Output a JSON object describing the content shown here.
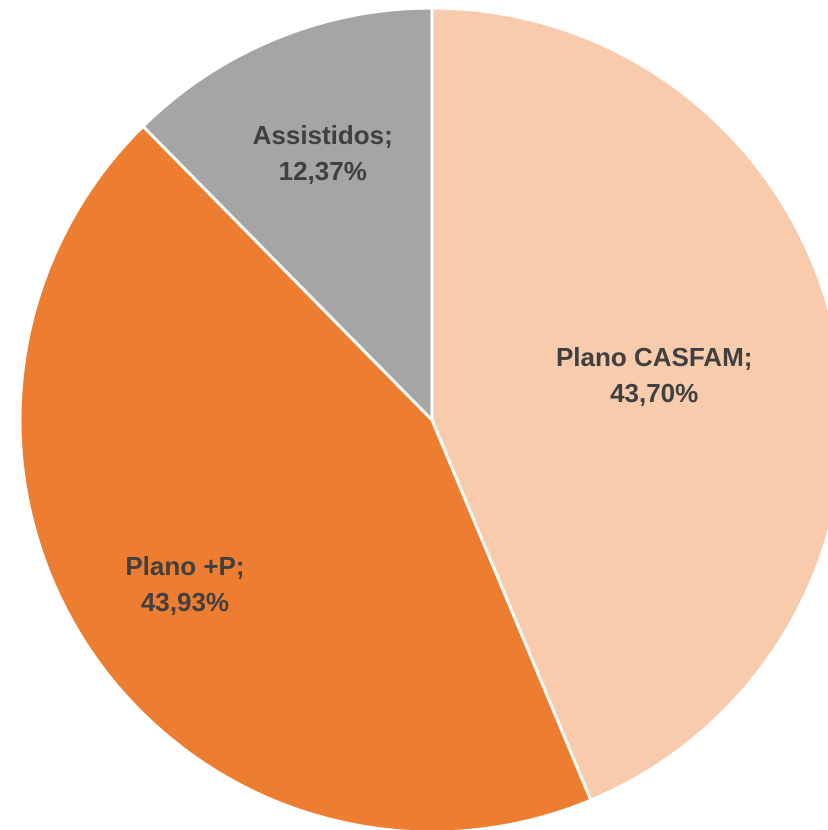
{
  "chart_data": {
    "type": "pie",
    "categories": [
      "Plano CASFAM;",
      "Plano +P;",
      "Assistidos;"
    ],
    "values": [
      43.7,
      43.93,
      12.37
    ],
    "value_labels": [
      "43,70%",
      "43,93%",
      "12,37%"
    ],
    "colors": [
      "#f8cbad",
      "#ed7d31",
      "#a5a5a5"
    ]
  }
}
